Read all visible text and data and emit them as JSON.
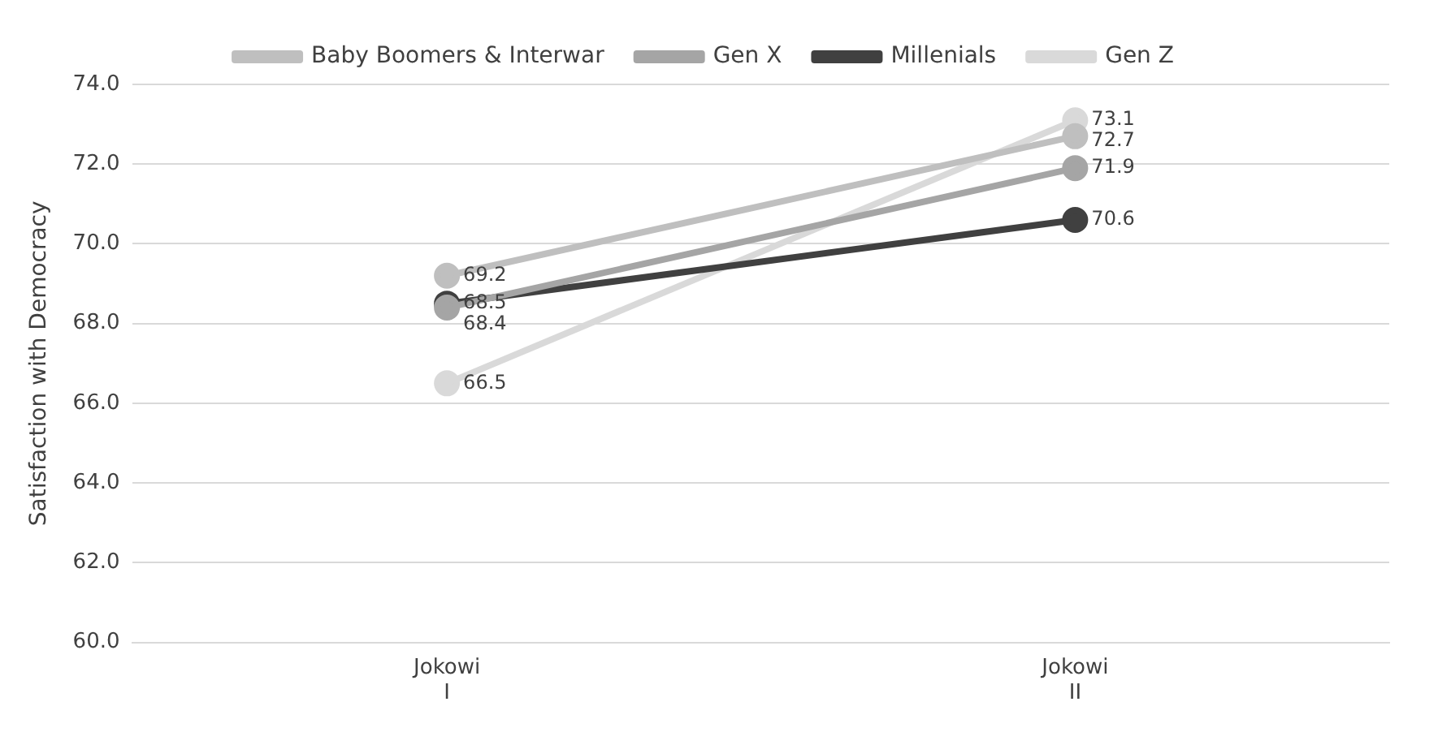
{
  "chart_data": {
    "type": "line",
    "ylabel": "Satisfaction with Democracy",
    "categories": [
      "Jokowi I",
      "Jokowi II"
    ],
    "series": [
      {
        "name": "Baby Boomers & Interwar",
        "color": "#bfbfbf",
        "values": [
          69.2,
          72.7
        ]
      },
      {
        "name": "Gen X",
        "color": "#a5a5a5",
        "values": [
          68.4,
          71.9
        ]
      },
      {
        "name": "Millenials",
        "color": "#404040",
        "values": [
          68.5,
          70.6
        ]
      },
      {
        "name": "Gen Z",
        "color": "#d9d9d9",
        "values": [
          66.5,
          73.1
        ]
      }
    ],
    "ylim": [
      60,
      74
    ],
    "yticks": [
      {
        "value": 60,
        "label": "60.0"
      },
      {
        "value": 62,
        "label": "62.0"
      },
      {
        "value": 64,
        "label": "64.0"
      },
      {
        "value": 66,
        "label": "66.0"
      },
      {
        "value": 68,
        "label": "68.0"
      },
      {
        "value": 70,
        "label": "70.0"
      },
      {
        "value": 72,
        "label": "72.0"
      },
      {
        "value": 74,
        "label": "74.0"
      }
    ],
    "grid": "y",
    "legend": "top",
    "marker": "circle",
    "line_style": "solid",
    "data_labels": true
  }
}
